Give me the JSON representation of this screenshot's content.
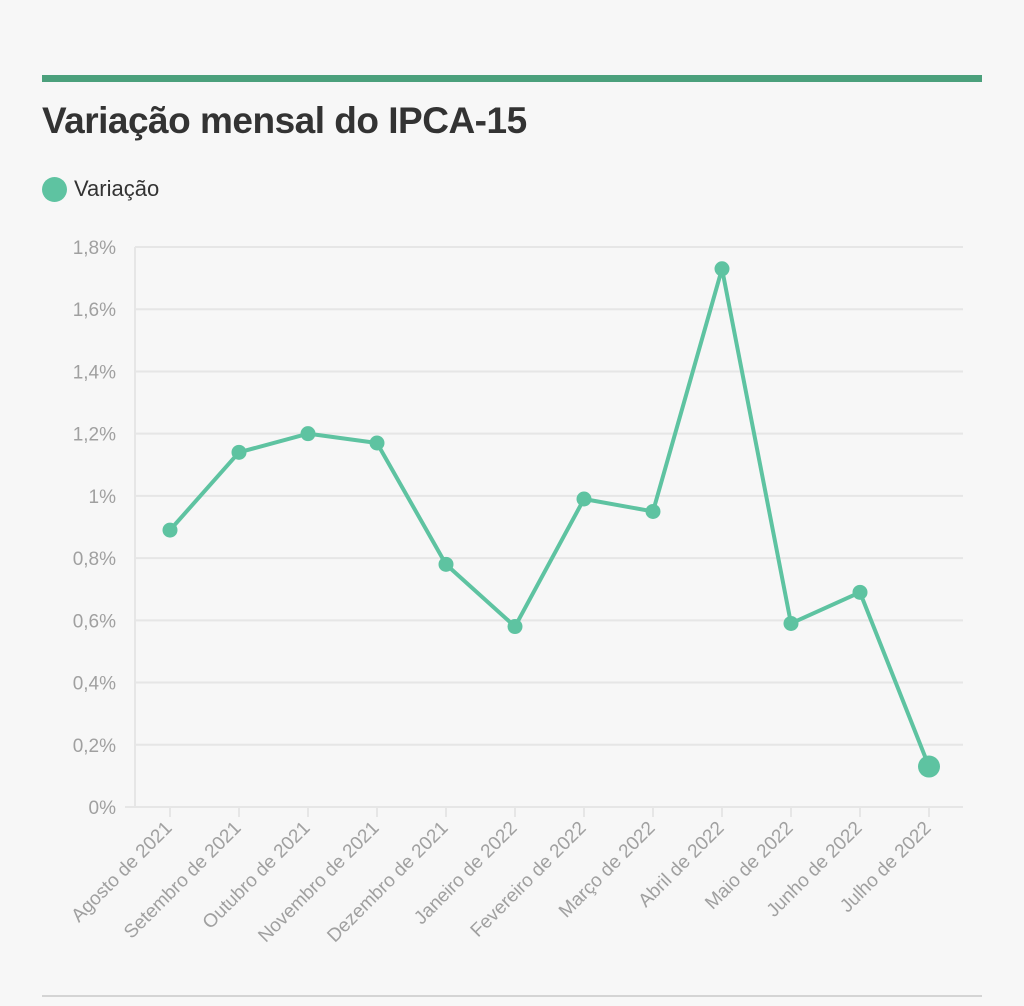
{
  "colors": {
    "accent": "#4ba07c",
    "series": "#5ec3a1",
    "grid": "#e6e6e6",
    "axis_text": "#a0a0a0",
    "title_text": "#333333"
  },
  "chart_data": {
    "type": "line",
    "title": "Variação mensal do IPCA-15",
    "legend": {
      "label": "Variação",
      "position": "top-left"
    },
    "xlabel": "",
    "ylabel": "",
    "ylim": [
      0,
      1.8
    ],
    "y_ticks": [
      {
        "value": 0,
        "label": "0%"
      },
      {
        "value": 0.2,
        "label": "0,2%"
      },
      {
        "value": 0.4,
        "label": "0,4%"
      },
      {
        "value": 0.6,
        "label": "0,6%"
      },
      {
        "value": 0.8,
        "label": "0,8%"
      },
      {
        "value": 1.0,
        "label": "1%"
      },
      {
        "value": 1.2,
        "label": "1,2%"
      },
      {
        "value": 1.4,
        "label": "1,4%"
      },
      {
        "value": 1.6,
        "label": "1,6%"
      },
      {
        "value": 1.8,
        "label": "1,8%"
      }
    ],
    "categories": [
      "Agosto de 2021",
      "Setembro de 2021",
      "Outubro de 2021",
      "Novembro de 2021",
      "Dezembro de 2021",
      "Janeiro de 2022",
      "Fevereiro de 2022",
      "Março de 2022",
      "Abril de 2022",
      "Maio de 2022",
      "Junho de 2022",
      "Julho de 2022"
    ],
    "series": [
      {
        "name": "Variação",
        "values": [
          0.89,
          1.14,
          1.2,
          1.17,
          0.78,
          0.58,
          0.99,
          0.95,
          1.73,
          0.59,
          0.69,
          0.13
        ],
        "highlight_last": true
      }
    ]
  }
}
